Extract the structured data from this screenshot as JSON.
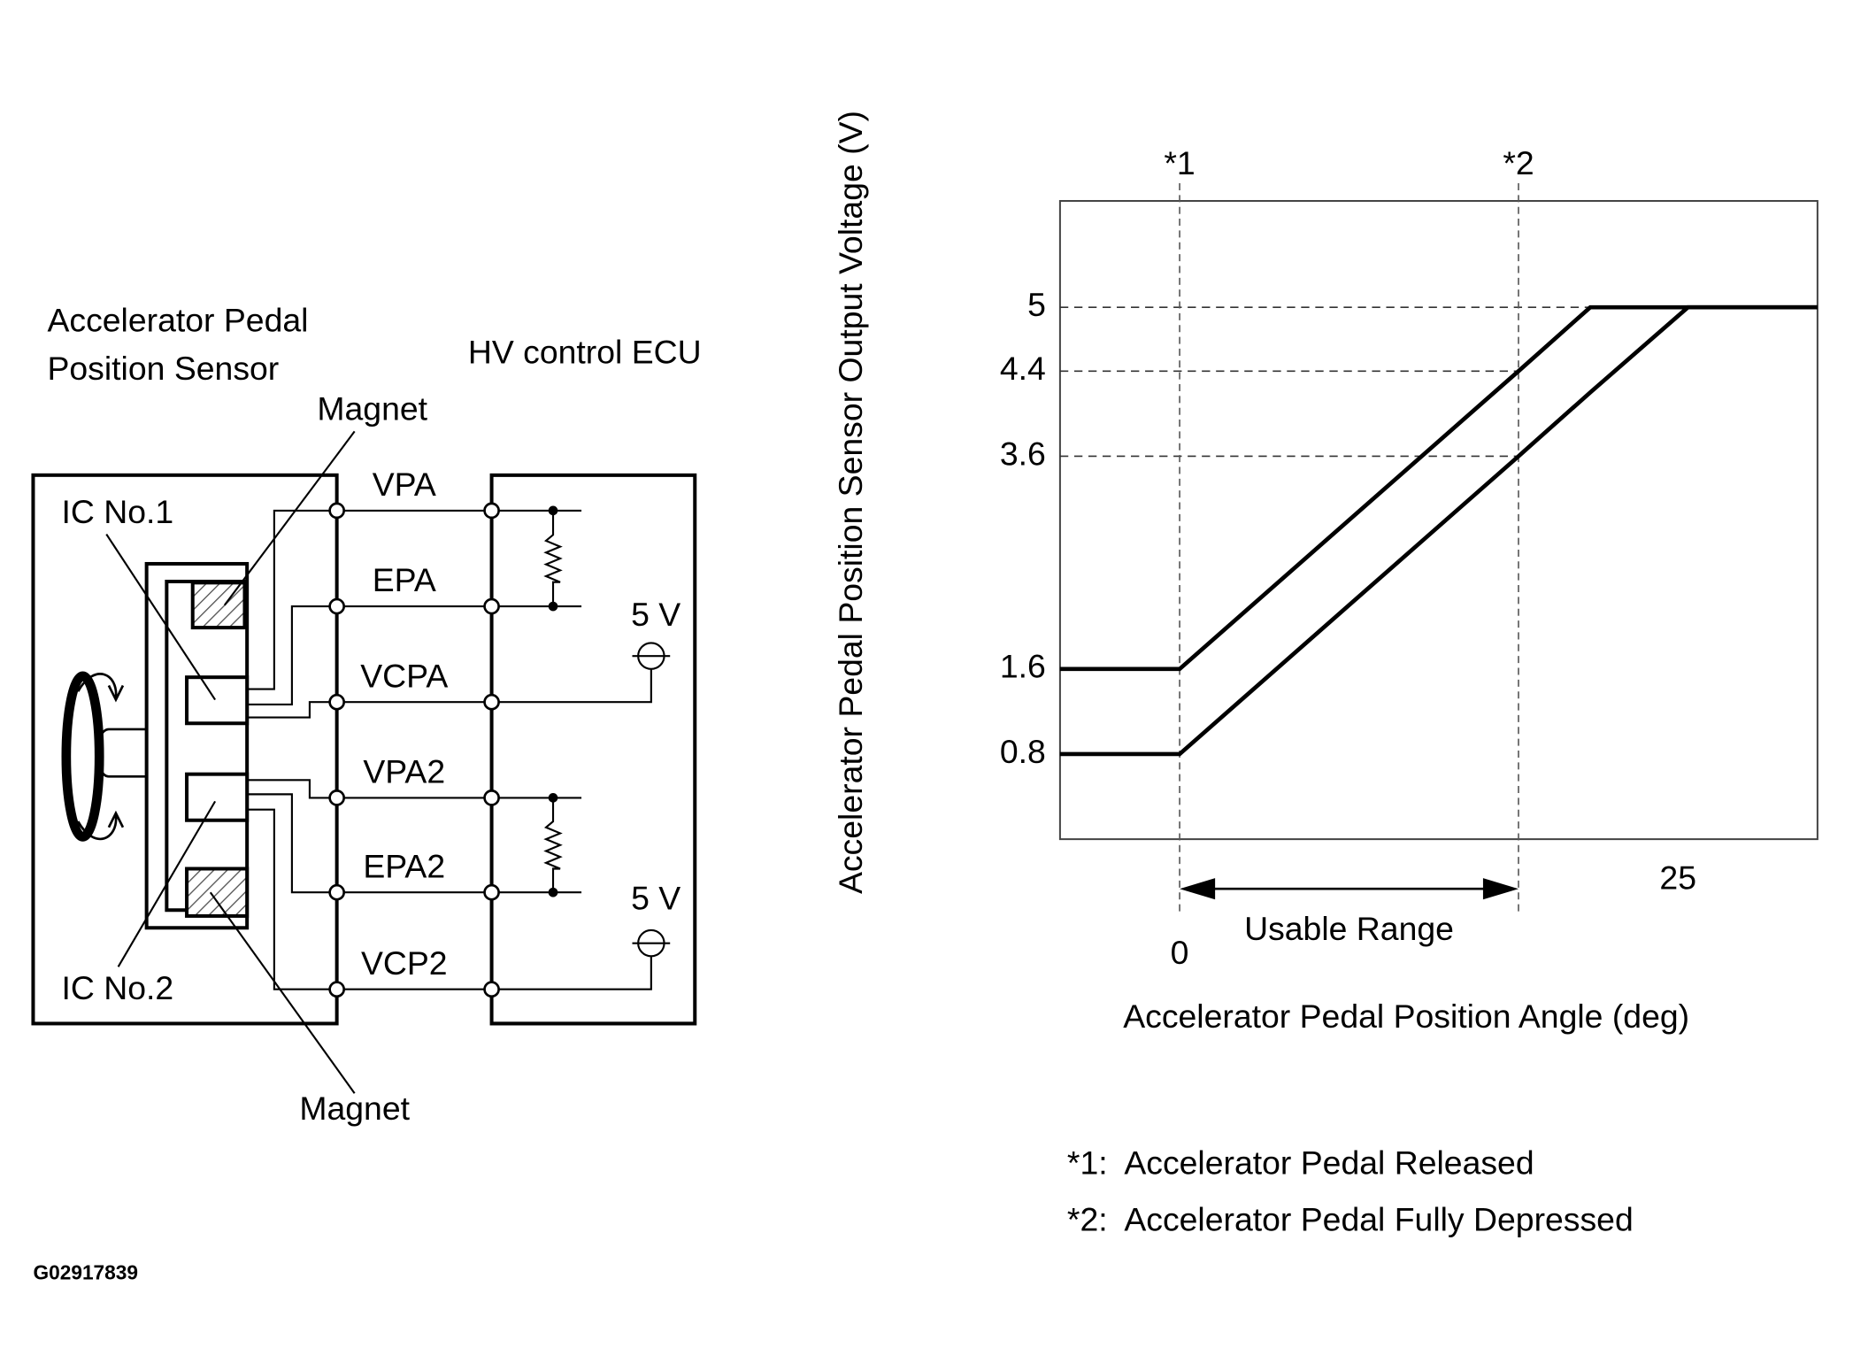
{
  "diagram": {
    "sensor_label": [
      "Accelerator Pedal",
      "Position Sensor"
    ],
    "ecu_label": "HV control ECU",
    "magnet_labels": [
      "Magnet",
      "Magnet"
    ],
    "ic_labels": [
      "IC No.1",
      "IC No.2"
    ],
    "pins": [
      "VPA",
      "EPA",
      "VCPA",
      "VPA2",
      "EPA2",
      "VCP2"
    ],
    "supply_labels": [
      "5 V",
      "5 V"
    ]
  },
  "chart_data": {
    "type": "line",
    "y_label": "Accelerator Pedal Position Sensor Output Voltage (V)",
    "x_label": "Accelerator Pedal Position Angle (deg)",
    "x": [
      -6,
      0,
      17,
      20.6,
      25.5,
      32
    ],
    "series": [
      {
        "color": "#000000",
        "values": [
          1.6,
          1.6,
          4.4,
          5,
          5,
          5
        ]
      },
      {
        "color": "#000000",
        "values": [
          0.8,
          0.8,
          3.6,
          4.2,
          5,
          5
        ]
      }
    ],
    "xlim": [
      -6,
      32
    ],
    "xticks": [
      0,
      25
    ],
    "ylim": [
      0,
      6
    ],
    "yticks": [
      0.8,
      1.6,
      3.6,
      4.4,
      5
    ],
    "markers": [
      {
        "x": 0,
        "label": "*1"
      },
      {
        "x": 17,
        "label": "*2"
      }
    ],
    "range_label": "Usable Range",
    "notes": [
      "*1:  Accelerator Pedal Released",
      "*2:  Accelerator Pedal Fully Depressed"
    ]
  },
  "figure_id": "G02917839"
}
